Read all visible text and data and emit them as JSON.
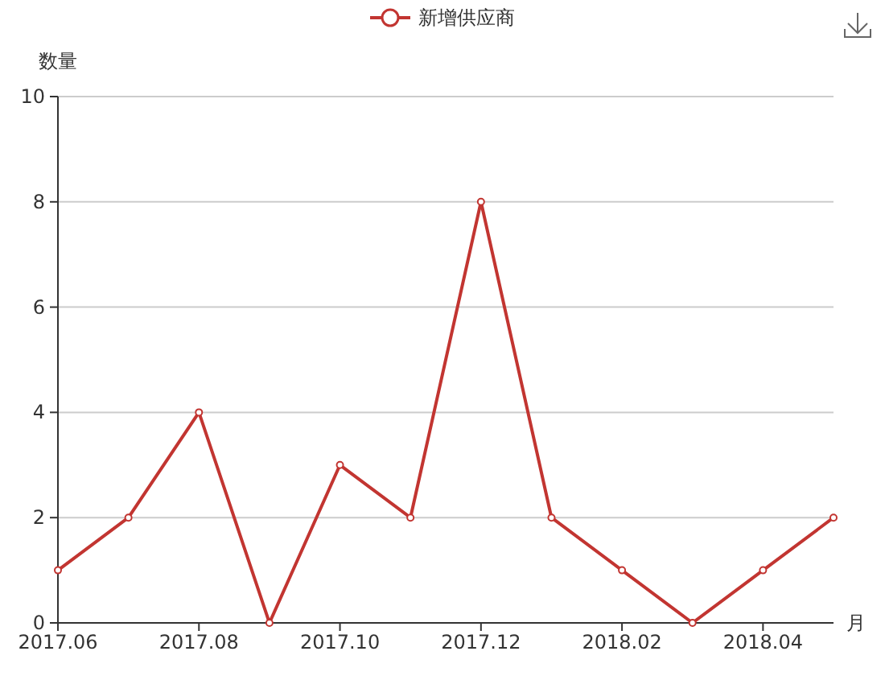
{
  "chart_data": {
    "type": "line",
    "xlabel": "月",
    "ylabel": "数量",
    "categories": [
      "2017.06",
      null,
      "2017.08",
      null,
      "2017.10",
      null,
      "2017.12",
      null,
      "2018.02",
      null,
      "2018.04",
      null
    ],
    "series": [
      {
        "name": "新增供应商",
        "color": "#c23531",
        "values": [
          1,
          2,
          4,
          0,
          3,
          2,
          8,
          2,
          1,
          0,
          1,
          2
        ]
      }
    ],
    "ylim": [
      0,
      10
    ],
    "yticks": [
      0,
      2,
      4,
      6,
      8,
      10
    ],
    "grid": "y",
    "legend": "top",
    "marker": "circle",
    "line_style": "solid"
  }
}
